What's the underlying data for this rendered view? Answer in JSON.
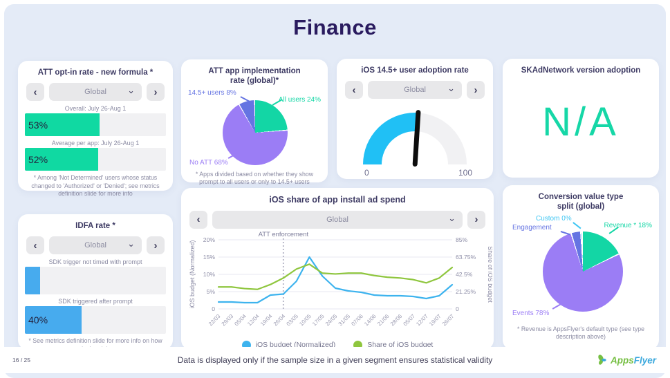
{
  "page": {
    "title": "Finance",
    "page_number": "16 / 25",
    "footer_note": "Data is displayed only if the sample size in a given segment ensures statistical validity",
    "logo": {
      "word1": "Apps",
      "word2": "Flyer"
    }
  },
  "icons": {
    "prev": "‹",
    "next": "›",
    "caret": "⌄"
  },
  "colors": {
    "background": "#e4ebf7",
    "card": "#ffffff",
    "title_navy": "#2a1b5f",
    "teal": "#10d9a2",
    "purple": "#9b7df5",
    "periwinkle": "#6574e2",
    "cyan": "#3fc6f3",
    "gauge_blue": "#20c0f5",
    "bar_blue": "#47abee",
    "line_blue": "#3db3ee",
    "line_green": "#8fc63e",
    "na_teal": "#16d7a7"
  },
  "panels": {
    "att_opt_in": {
      "title": "ATT opt-in rate - new formula *",
      "selector": {
        "value": "Global"
      },
      "footnote": "* Among 'Not Determined' users whose status changed to 'Authorized' or 'Denied'; see metrics definition slide for more info"
    },
    "att_implementation": {
      "title": "ATT app implementation rate (global)*",
      "footnote": "* Apps divided based on whether they show prompt to all users or only to 14.5+ users"
    },
    "adoption": {
      "title": "iOS 14.5+ user adoption rate",
      "selector": {
        "value": "Global"
      }
    },
    "skadnetwork": {
      "title": "SKAdNetwork version adoption",
      "value": "N/A"
    },
    "idfa": {
      "title": "IDFA rate *",
      "selector": {
        "value": "Global"
      },
      "footnote": "* See metrics definition slide for more info on how we calculated the rate"
    },
    "ad_spend": {
      "title": "iOS share of app install ad spend",
      "selector": {
        "value": "Global"
      }
    },
    "conversion_split": {
      "title": "Conversion value type split (global)",
      "footnote": "* Revenue is AppsFlyer's default type (see type description above)"
    }
  },
  "chart_data": [
    {
      "id": "att-opt-in-bars",
      "type": "bar",
      "max": 100,
      "categories": [
        "Overall: July 26-Aug 1",
        "Average per app: July 26-Aug 1"
      ],
      "values": [
        53,
        52
      ],
      "value_labels": [
        "53%",
        "52%"
      ],
      "bar_color": "#10d9a2"
    },
    {
      "id": "att-implementation-pie",
      "type": "pie",
      "slices": [
        {
          "label": "All users",
          "pct_label": "All users 24%",
          "value": 24,
          "color": "#13d6a5"
        },
        {
          "label": "No ATT",
          "pct_label": "No ATT 68%",
          "value": 68,
          "color": "#9b7df5"
        },
        {
          "label": "14.5+ users",
          "pct_label": "14.5+ users 8%",
          "value": 8,
          "color": "#6574e2"
        }
      ]
    },
    {
      "id": "ios-adoption-gauge",
      "type": "gauge",
      "value": 52,
      "min_label": "0",
      "max_label": "100",
      "color": "#20c0f5"
    },
    {
      "id": "idfa-bars",
      "type": "bar",
      "max": 100,
      "categories": [
        "SDK trigger not timed with prompt",
        "SDK triggered after prompt"
      ],
      "values": [
        11,
        40
      ],
      "value_labels": [
        "",
        "40%"
      ],
      "bar_color": "#47abee"
    },
    {
      "id": "ad-spend-lines",
      "type": "line",
      "title": "iOS share of app install ad spend",
      "x": [
        "22/03",
        "29/03",
        "05/04",
        "12/04",
        "19/04",
        "26/04",
        "03/05",
        "10/05",
        "17/05",
        "24/05",
        "31/05",
        "07/06",
        "14/06",
        "21/06",
        "28/06",
        "05/07",
        "12/07",
        "19/07",
        "26/07"
      ],
      "series": [
        {
          "name": "iOS budget (Normalized)",
          "axis": "left",
          "color": "#3db3ee",
          "values": [
            2,
            2,
            1.8,
            1.8,
            4,
            4.3,
            8,
            15,
            9.5,
            6,
            5.2,
            4.8,
            4,
            3.8,
            3.8,
            3.6,
            3,
            3.8,
            7
          ]
        },
        {
          "name": "Share of iOS budget",
          "axis": "right",
          "color": "#8fc63e",
          "values": [
            27,
            27,
            25,
            24,
            30,
            38,
            49,
            55,
            44,
            43,
            44,
            44,
            41,
            39,
            38,
            36,
            32,
            38,
            51
          ]
        }
      ],
      "left_ticks": [
        "0",
        "5%",
        "10%",
        "15%",
        "20%"
      ],
      "right_ticks": [
        "0",
        "21.25%",
        "42.5%",
        "63.75%",
        "85%"
      ],
      "left_max": 20,
      "right_max": 85,
      "ylabel_left": "iOS budget (Normalized)",
      "ylabel_right": "Share of iOS budget",
      "annotation": {
        "label": "ATT enforcement",
        "x": "26/04"
      },
      "legend": [
        "iOS budget (Normalized)",
        "Share of iOS budget"
      ]
    },
    {
      "id": "conversion-split-pie",
      "type": "pie",
      "slices": [
        {
          "label": "Revenue",
          "pct_label": "Revenue * 18%",
          "value": 18,
          "color": "#13d6a5"
        },
        {
          "label": "Events",
          "pct_label": "Events 78%",
          "value": 77.5,
          "color": "#9b7df5"
        },
        {
          "label": "Engagement",
          "pct_label": "Engagement",
          "value": 3.9,
          "color": "#6574e2"
        },
        {
          "label": "Custom",
          "pct_label": "Custom 0%",
          "value": 0.6,
          "color": "#3fc6f3"
        }
      ]
    }
  ]
}
